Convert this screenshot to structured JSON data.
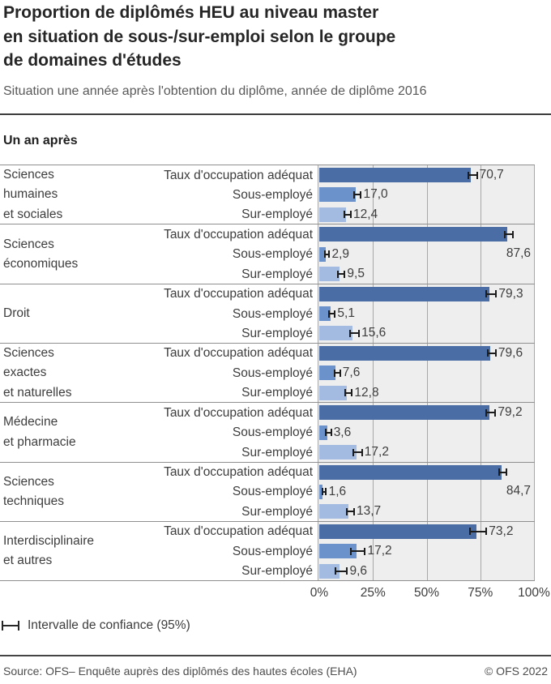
{
  "header": {
    "title_lines": [
      "Proportion de diplômés HEU au niveau master",
      "en situation de sous-/sur-emploi selon le groupe",
      "de domaines d'études"
    ],
    "subtitle": "Situation une année après l'obtention du diplôme, année de diplôme 2016",
    "section_label": "Un an après"
  },
  "chart_data": {
    "type": "bar",
    "orientation": "horizontal",
    "unit": "%",
    "xlim": [
      0,
      100
    ],
    "x_tick_labels": [
      "0%",
      "25%",
      "50%",
      "75%",
      "100%"
    ],
    "grid": true,
    "series_labels": [
      "Taux d'occupation adéquat",
      "Sous-employé",
      "Sur-employé"
    ],
    "series_colors": [
      "#4b6da6",
      "#6b92cb",
      "#a3bbe1"
    ],
    "error_bars": "95% confidence interval",
    "groups": [
      {
        "label_lines": [
          "Sciences",
          "humaines",
          "et sociales"
        ],
        "rows": [
          {
            "value": 70.7,
            "display": "70,7",
            "ci": 1.6
          },
          {
            "value": 17.0,
            "display": "17,0",
            "ci": 1.3
          },
          {
            "value": 12.4,
            "display": "12,4",
            "ci": 1.2
          }
        ]
      },
      {
        "label_lines": [
          "Sciences",
          "économiques"
        ],
        "rows": [
          {
            "value": 87.6,
            "display": "87,6",
            "ci": 1.4,
            "label_below": true
          },
          {
            "value": 2.9,
            "display": "2,9",
            "ci": 0.7
          },
          {
            "value": 9.5,
            "display": "9,5",
            "ci": 1.2
          }
        ]
      },
      {
        "label_lines": [
          "Droit"
        ],
        "rows": [
          {
            "value": 79.3,
            "display": "79,3",
            "ci": 2.0
          },
          {
            "value": 5.1,
            "display": "5,1",
            "ci": 1.1
          },
          {
            "value": 15.6,
            "display": "15,6",
            "ci": 1.8
          }
        ]
      },
      {
        "label_lines": [
          "Sciences",
          "exactes",
          "et naturelles"
        ],
        "rows": [
          {
            "value": 79.6,
            "display": "79,6",
            "ci": 1.5
          },
          {
            "value": 7.6,
            "display": "7,6",
            "ci": 1.0
          },
          {
            "value": 12.8,
            "display": "12,8",
            "ci": 1.3
          }
        ]
      },
      {
        "label_lines": [
          "Médecine",
          "et pharmacie"
        ],
        "rows": [
          {
            "value": 79.2,
            "display": "79,2",
            "ci": 1.7
          },
          {
            "value": 3.6,
            "display": "3,6",
            "ci": 0.8
          },
          {
            "value": 17.2,
            "display": "17,2",
            "ci": 1.6
          }
        ]
      },
      {
        "label_lines": [
          "Sciences",
          "techniques"
        ],
        "rows": [
          {
            "value": 84.7,
            "display": "84,7",
            "ci": 1.4,
            "label_below": true
          },
          {
            "value": 1.6,
            "display": "1,6",
            "ci": 0.5
          },
          {
            "value": 13.7,
            "display": "13,7",
            "ci": 1.4
          }
        ]
      },
      {
        "label_lines": [
          "Interdisciplinaire",
          "et autres"
        ],
        "rows": [
          {
            "value": 73.2,
            "display": "73,2",
            "ci": 3.5
          },
          {
            "value": 17.2,
            "display": "17,2",
            "ci": 3.0
          },
          {
            "value": 9.6,
            "display": "9,6",
            "ci": 2.3
          }
        ]
      }
    ]
  },
  "legend": {
    "ci_label": "Intervalle de confiance (95%)"
  },
  "footer": {
    "source": "Source: OFS– Enquête auprès des diplômés des hautes écoles (EHA)",
    "copyright": "© OFS 2022"
  }
}
